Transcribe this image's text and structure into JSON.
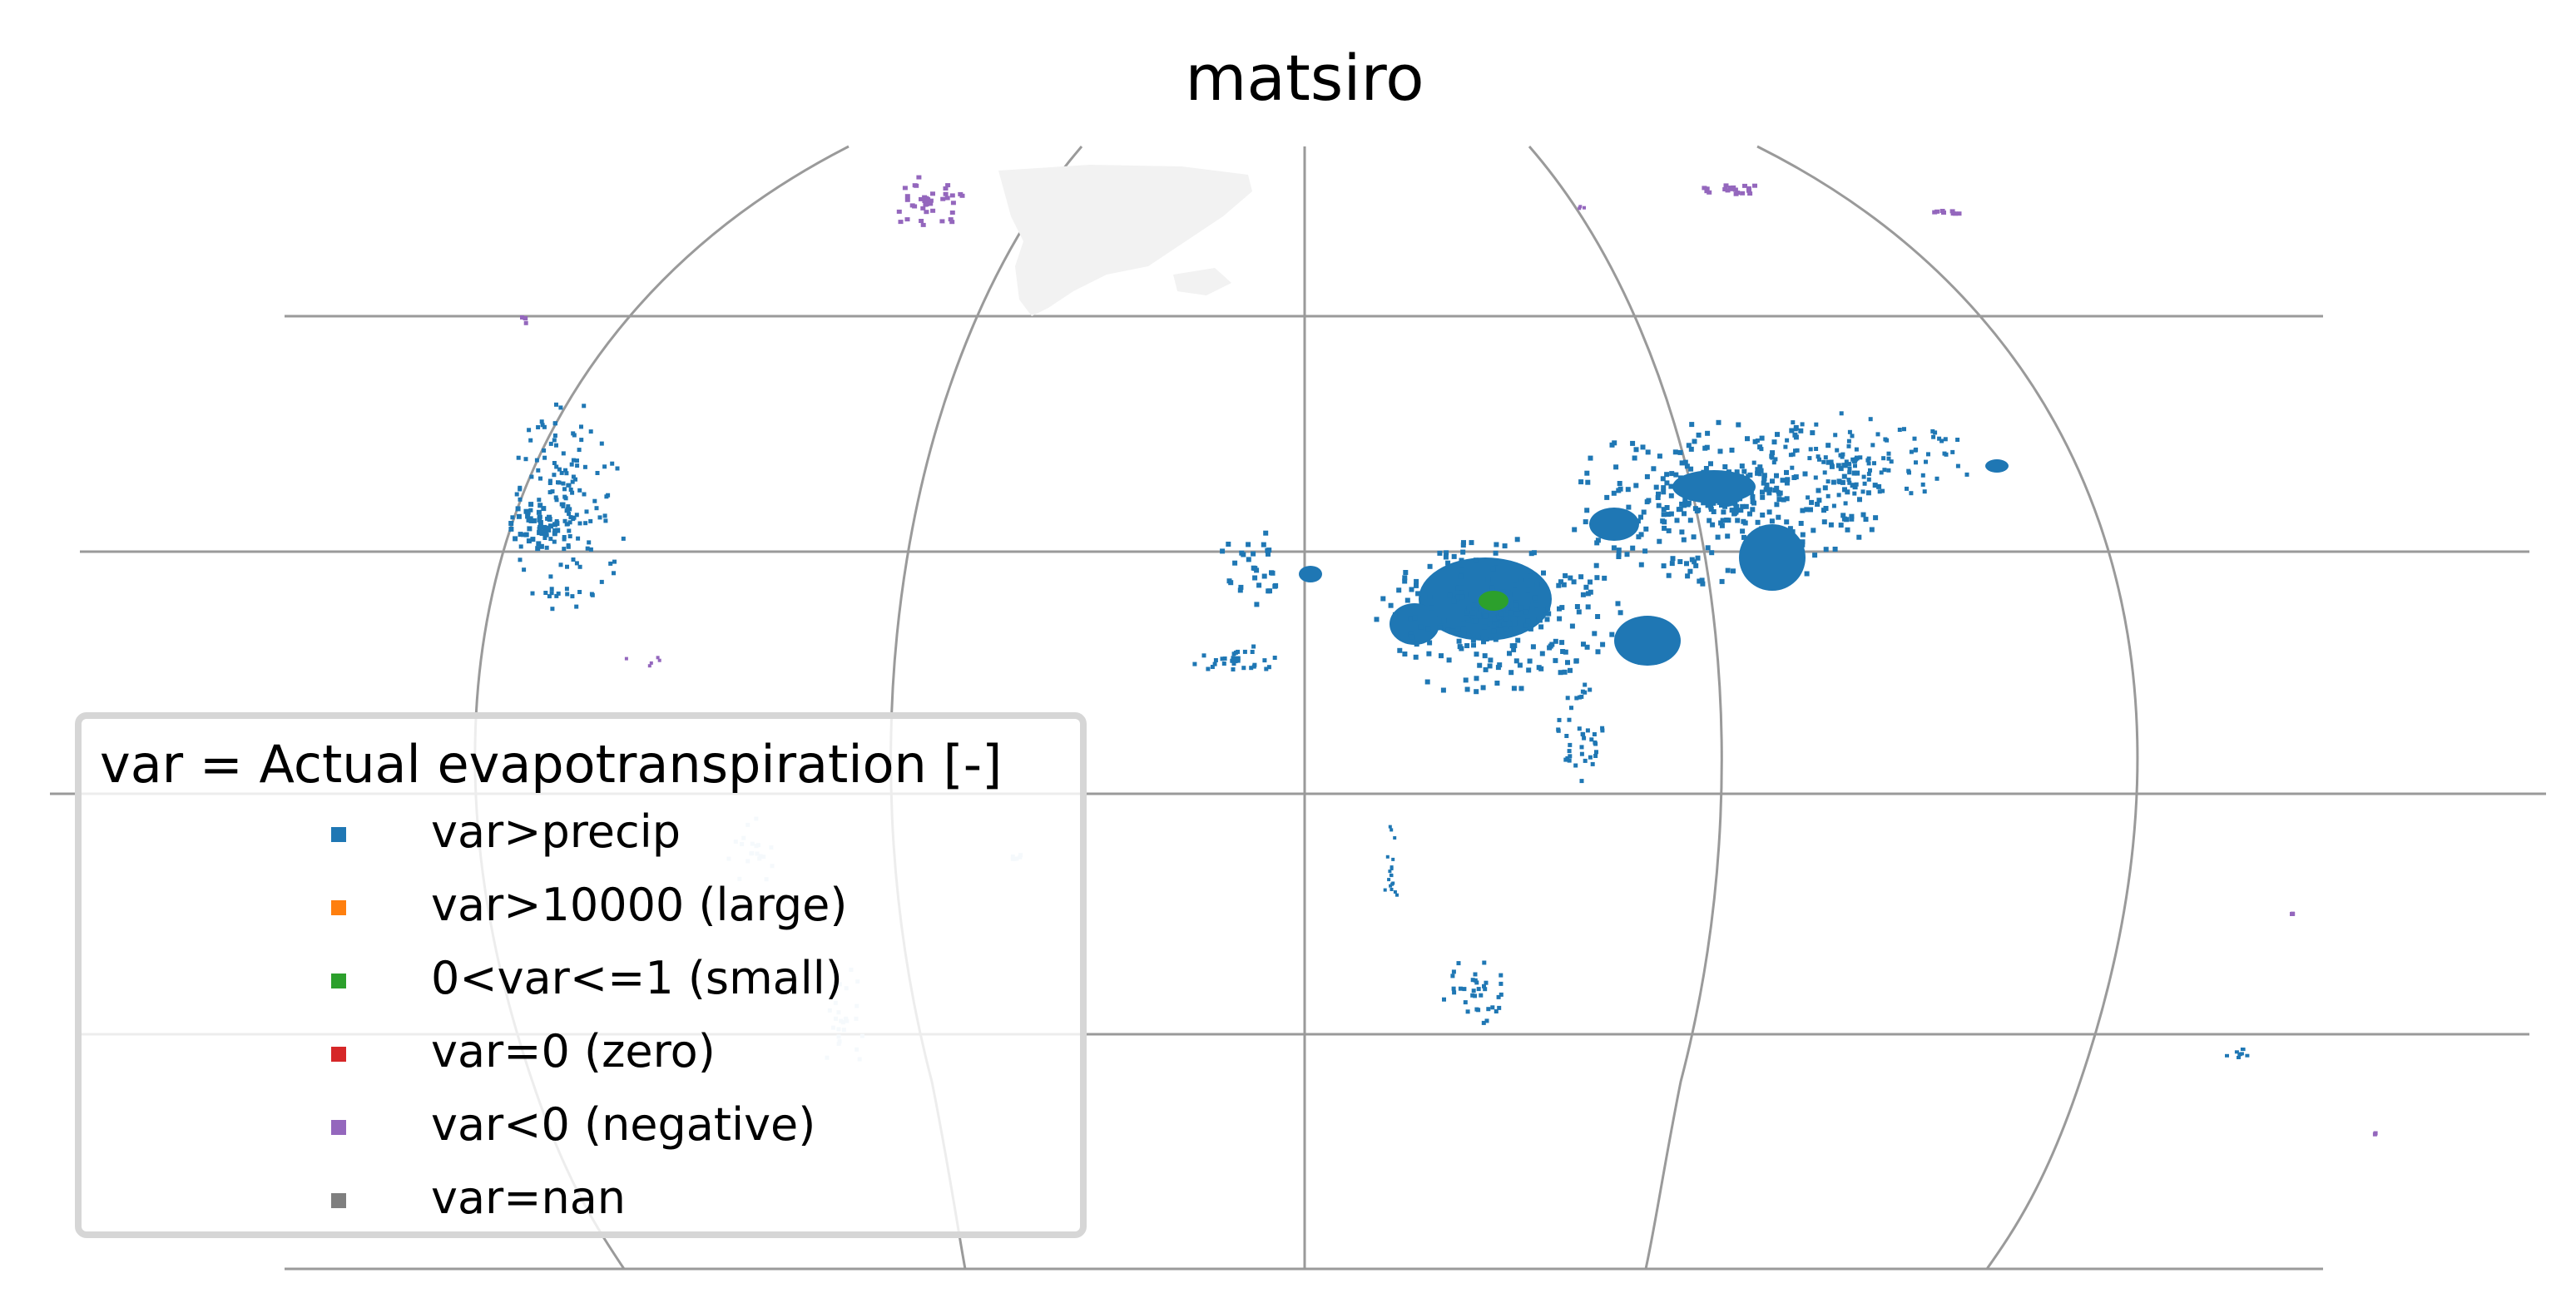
{
  "title": "matsiro",
  "projection": "Mollweide",
  "grid": true,
  "legend": {
    "title": "var = Actual evapotranspiration [-]",
    "placement": "lower-left",
    "items": [
      {
        "label": "var>precip",
        "color": "#1f77b4"
      },
      {
        "label": "var>10000 (large)",
        "color": "#ff7f0e"
      },
      {
        "label": "0<var<=1 (small)",
        "color": "#2ca02c"
      },
      {
        "label": "var=0 (zero)",
        "color": "#d62728"
      },
      {
        "label": "var<0 (negative)",
        "color": "#9467bd"
      },
      {
        "label": "var=nan",
        "color": "#7f7f7f"
      }
    ]
  },
  "colors": {
    "gridline": "#9a9a9a",
    "land_nan": "#f2f2f2"
  }
}
